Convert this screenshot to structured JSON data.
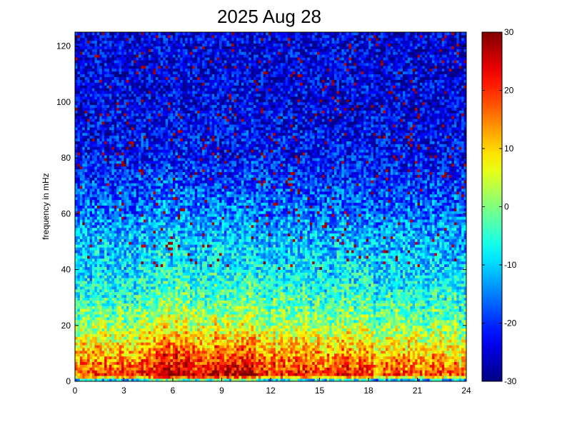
{
  "chart_data": {
    "type": "heatmap",
    "title": "2025 Aug 28",
    "xlabel": "",
    "ylabel": "frequency in mHz",
    "xlim": [
      0,
      24
    ],
    "ylim": [
      0,
      125
    ],
    "xticks": [
      0,
      3,
      6,
      9,
      12,
      15,
      18,
      21,
      24
    ],
    "yticks": [
      0,
      20,
      40,
      60,
      80,
      100,
      120
    ],
    "colormap": "jet",
    "clim": [
      -30,
      30
    ],
    "colorbar_ticks": [
      -30,
      -20,
      -10,
      0,
      10,
      20,
      30
    ],
    "colorbar_colors": [
      "#00008f",
      "#0000ff",
      "#00ffff",
      "#ffff00",
      "#ff0000",
      "#800000"
    ],
    "grid": false,
    "n_time_bins": 160,
    "n_freq_bins": 125,
    "base_level": {
      "frequency_mHz": [
        0,
        1,
        2,
        5,
        10,
        15,
        20,
        30,
        40,
        50,
        60,
        70,
        80,
        100,
        125
      ],
      "level": [
        -20,
        -5,
        18,
        14,
        10,
        5,
        0,
        -6,
        -10,
        -12,
        -16,
        -19,
        -22,
        -24,
        -24
      ]
    },
    "time_activity": {
      "hour": [
        0,
        2,
        4,
        5,
        6,
        7,
        8,
        9,
        10,
        11,
        12,
        13,
        14,
        15,
        16,
        17,
        18,
        19,
        20,
        21,
        22,
        23,
        24
      ],
      "boost": [
        0,
        2,
        2,
        10,
        9,
        8,
        6,
        9,
        9,
        8,
        3,
        4,
        3,
        2,
        3,
        5,
        1,
        0,
        2,
        1,
        0,
        0,
        0
      ]
    },
    "noise_amplitude": 8
  }
}
